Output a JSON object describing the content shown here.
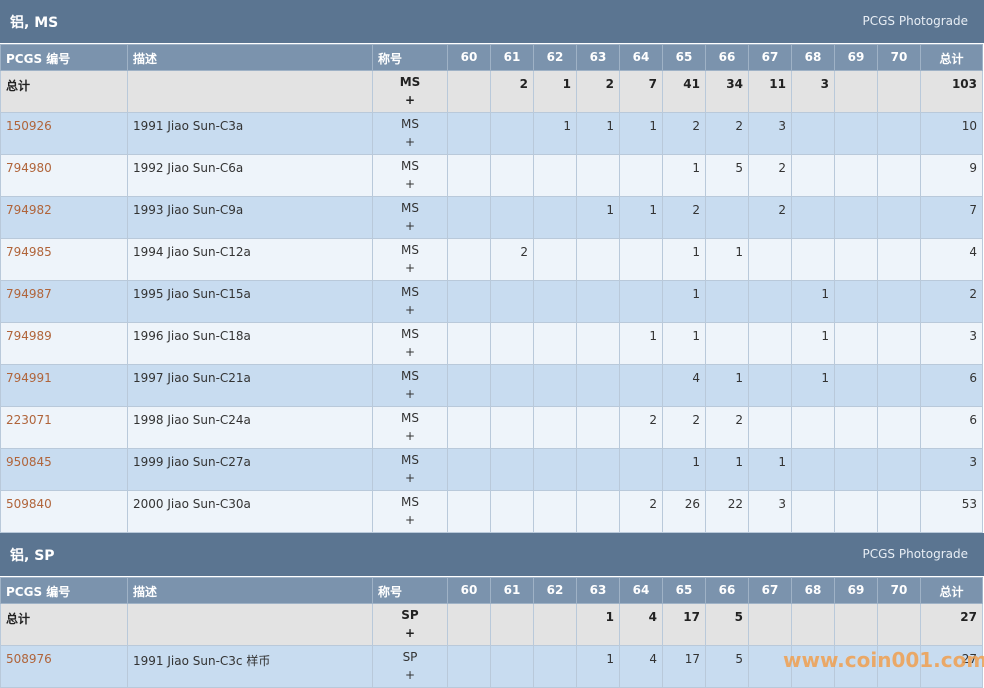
{
  "sections": [
    {
      "title": "铝, MS",
      "link": "PCGS Photograde",
      "columns": [
        "PCGS 编号",
        "描述",
        "称号",
        60,
        61,
        62,
        63,
        64,
        65,
        66,
        67,
        68,
        69,
        70,
        "总计"
      ],
      "total": {
        "label": "总计",
        "grade": "MS",
        "plus": "+",
        "counts": [
          null,
          2,
          1,
          2,
          7,
          41,
          34,
          11,
          3,
          null,
          null
        ],
        "sum": 103
      },
      "rows": [
        {
          "pcgs": "150926",
          "desc": "1991 Jiao Sun-C3a",
          "grade": "MS",
          "plus": "+",
          "counts": [
            null,
            null,
            1,
            1,
            1,
            2,
            2,
            3,
            null,
            null,
            null
          ],
          "sum": 10
        },
        {
          "pcgs": "794980",
          "desc": "1992 Jiao Sun-C6a",
          "grade": "MS",
          "plus": "+",
          "counts": [
            null,
            null,
            null,
            null,
            null,
            1,
            5,
            2,
            null,
            null,
            null
          ],
          "sum": 9
        },
        {
          "pcgs": "794982",
          "desc": "1993 Jiao Sun-C9a",
          "grade": "MS",
          "plus": "+",
          "counts": [
            null,
            null,
            null,
            1,
            1,
            2,
            null,
            2,
            null,
            null,
            null
          ],
          "sum": 7
        },
        {
          "pcgs": "794985",
          "desc": "1994 Jiao Sun-C12a",
          "grade": "MS",
          "plus": "+",
          "counts": [
            null,
            2,
            null,
            null,
            null,
            1,
            1,
            null,
            null,
            null,
            null
          ],
          "sum": 4
        },
        {
          "pcgs": "794987",
          "desc": "1995 Jiao Sun-C15a",
          "grade": "MS",
          "plus": "+",
          "counts": [
            null,
            null,
            null,
            null,
            null,
            1,
            null,
            null,
            1,
            null,
            null
          ],
          "sum": 2
        },
        {
          "pcgs": "794989",
          "desc": "1996 Jiao Sun-C18a",
          "grade": "MS",
          "plus": "+",
          "counts": [
            null,
            null,
            null,
            null,
            1,
            1,
            null,
            null,
            1,
            null,
            null
          ],
          "sum": 3
        },
        {
          "pcgs": "794991",
          "desc": "1997 Jiao Sun-C21a",
          "grade": "MS",
          "plus": "+",
          "counts": [
            null,
            null,
            null,
            null,
            null,
            4,
            1,
            null,
            1,
            null,
            null
          ],
          "sum": 6
        },
        {
          "pcgs": "223071",
          "desc": "1998 Jiao Sun-C24a",
          "grade": "MS",
          "plus": "+",
          "counts": [
            null,
            null,
            null,
            null,
            2,
            2,
            2,
            null,
            null,
            null,
            null
          ],
          "sum": 6
        },
        {
          "pcgs": "950845",
          "desc": "1999 Jiao Sun-C27a",
          "grade": "MS",
          "plus": "+",
          "counts": [
            null,
            null,
            null,
            null,
            null,
            1,
            1,
            1,
            null,
            null,
            null
          ],
          "sum": 3
        },
        {
          "pcgs": "509840",
          "desc": "2000 Jiao Sun-C30a",
          "grade": "MS",
          "plus": "+",
          "counts": [
            null,
            null,
            null,
            null,
            2,
            26,
            22,
            3,
            null,
            null,
            null
          ],
          "sum": 53
        }
      ]
    },
    {
      "title": "铝, SP",
      "link": "PCGS Photograde",
      "columns": [
        "PCGS 编号",
        "描述",
        "称号",
        60,
        61,
        62,
        63,
        64,
        65,
        66,
        67,
        68,
        69,
        70,
        "总计"
      ],
      "total": {
        "label": "总计",
        "grade": "SP",
        "plus": "+",
        "counts": [
          null,
          null,
          null,
          1,
          4,
          17,
          5,
          null,
          null,
          null,
          null
        ],
        "sum": 27
      },
      "rows": [
        {
          "pcgs": "508976",
          "desc": "1991 Jiao Sun-C3c 样币",
          "grade": "SP",
          "plus": "+",
          "counts": [
            null,
            null,
            null,
            1,
            4,
            17,
            5,
            null,
            null,
            null,
            null
          ],
          "sum": 27
        }
      ]
    }
  ],
  "watermark": "www.coin001.com"
}
